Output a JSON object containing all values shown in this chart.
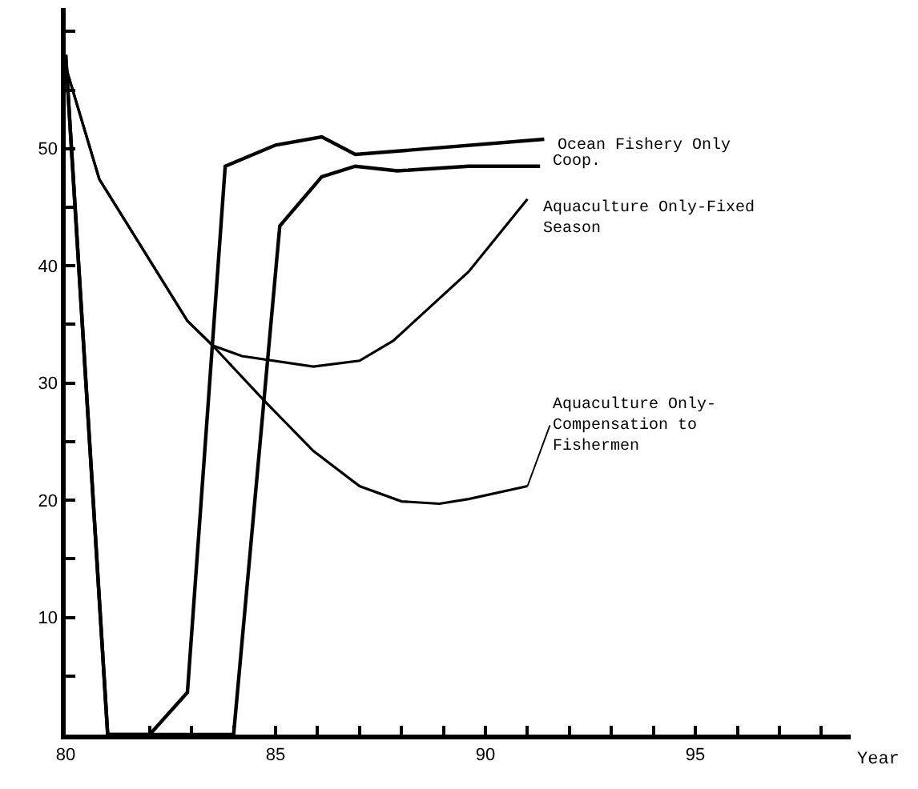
{
  "chart_data": {
    "type": "line",
    "xlabel": "Year",
    "xlim": [
      80,
      98.7
    ],
    "ylim": [
      0,
      62
    ],
    "xticks": [
      80,
      {
        "value": 81,
        "label": null
      },
      {
        "value": 82,
        "label": null
      },
      {
        "value": 83,
        "label": null
      },
      {
        "value": 84,
        "label": null
      },
      85,
      {
        "value": 86,
        "label": null
      },
      {
        "value": 87,
        "label": null
      },
      {
        "value": 88,
        "label": null
      },
      {
        "value": 89,
        "label": null
      },
      90,
      {
        "value": 91,
        "label": null
      },
      {
        "value": 92,
        "label": null
      },
      {
        "value": 93,
        "label": null
      },
      {
        "value": 94,
        "label": null
      },
      95,
      {
        "value": 96,
        "label": null
      },
      {
        "value": 97,
        "label": null
      },
      {
        "value": 98,
        "label": null
      }
    ],
    "yticks": [
      {
        "value": 5,
        "label": null
      },
      10,
      {
        "value": 15,
        "label": null
      },
      20,
      {
        "value": 25,
        "label": null
      },
      30,
      {
        "value": 35,
        "label": null
      },
      40,
      {
        "value": 45,
        "label": null
      },
      50,
      {
        "value": 55,
        "label": null
      },
      {
        "value": 60,
        "label": null
      }
    ],
    "legend": false,
    "marker": "none",
    "line_style": "solid",
    "series": [
      {
        "name": "Ocean Fishery Only",
        "color": "#000000",
        "x": [
          80,
          81,
          82,
          82.9,
          83.8,
          85,
          86.1,
          86.9,
          91.4
        ],
        "values": [
          58,
          0,
          0,
          3.6,
          48.5,
          50.3,
          51,
          49.5,
          50.8
        ]
      },
      {
        "name": "Coop.",
        "color": "#000000",
        "x": [
          80,
          81,
          84,
          85.1,
          86.1,
          86.9,
          87.9,
          89.6,
          91.3
        ],
        "values": [
          58,
          0,
          0,
          43.4,
          47.6,
          48.5,
          48.1,
          48.5,
          48.5
        ]
      },
      {
        "name": "Aquaculture Only-Fixed Season",
        "color": "#000000",
        "x": [
          80,
          80.8,
          82.9,
          83.5,
          84.2,
          85.9,
          87,
          87.8,
          89.6,
          91
        ],
        "values": [
          57,
          47.4,
          35.3,
          33.2,
          32.3,
          31.4,
          31.9,
          33.6,
          39.5,
          45.7
        ]
      },
      {
        "name": "Aquaculture Only-Compensation to Fishermen",
        "color": "#000000",
        "x": [
          80,
          80.8,
          82.9,
          83.5,
          84.7,
          85.9,
          87,
          88,
          88.9,
          89.6,
          91
        ],
        "values": [
          57,
          47.4,
          35.3,
          33.2,
          28.6,
          24.2,
          21.2,
          19.9,
          19.7,
          20.1,
          21.2
        ]
      }
    ]
  }
}
